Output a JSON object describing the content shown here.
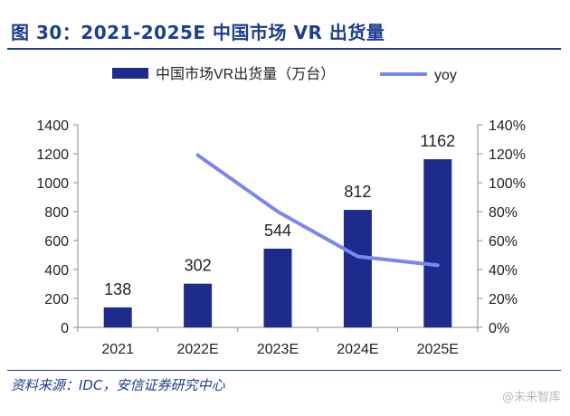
{
  "figure": {
    "title": "图 30：2021-2025E 中国市场 VR 出货量",
    "source": "资料来源：IDC，安信证券研究中心",
    "watermark": "@未来智库",
    "watermark_icon": "at-icon"
  },
  "colors": {
    "bar": "#1c2b8c",
    "line": "#7b86ef",
    "title": "#1d3d8f",
    "axis": "#888888",
    "text": "#222222"
  },
  "chart_data": {
    "type": "bar",
    "categories": [
      "2021",
      "2022E",
      "2023E",
      "2024E",
      "2025E"
    ],
    "series": [
      {
        "name": "中国市场VR出货量（万台）",
        "type": "bar",
        "axis": "left",
        "values": [
          138,
          302,
          544,
          812,
          1162
        ]
      },
      {
        "name": "yoy",
        "type": "line",
        "axis": "right",
        "values": [
          null,
          1.19,
          0.8,
          0.49,
          0.43
        ]
      }
    ],
    "data_labels": [
      "138",
      "302",
      "544",
      "812",
      "1162"
    ],
    "y_left": {
      "range": [
        0,
        1400
      ],
      "ticks": [
        0,
        200,
        400,
        600,
        800,
        1000,
        1200,
        1400
      ]
    },
    "y_right": {
      "range": [
        0,
        1.4
      ],
      "ticks": [
        0,
        0.2,
        0.4,
        0.6,
        0.8,
        1.0,
        1.2,
        1.4
      ],
      "tick_labels": [
        "0%",
        "20%",
        "40%",
        "60%",
        "80%",
        "100%",
        "120%",
        "140%"
      ]
    },
    "legend": {
      "position": "top"
    },
    "grid": false
  }
}
